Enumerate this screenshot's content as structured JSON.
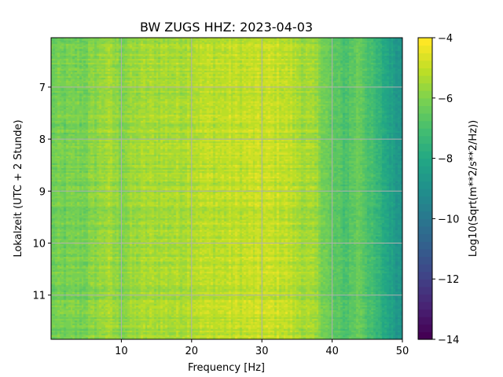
{
  "chart_data": {
    "type": "heatmap",
    "title": "BW ZUGS  HHZ: 2023-04-03",
    "xlabel": "Frequency [Hz]",
    "ylabel": "Lokalzeit (UTC + 2 Stunde)",
    "xlim": [
      0,
      50
    ],
    "ylim": [
      11.85,
      6.05
    ],
    "y_inverted": true,
    "x_ticks": [
      10,
      20,
      30,
      40,
      50
    ],
    "x_tick_labels": [
      "10",
      "20",
      "30",
      "40",
      "50"
    ],
    "y_ticks": [
      7,
      8,
      9,
      10,
      11
    ],
    "y_tick_labels": [
      "7",
      "8",
      "9",
      "10",
      "11"
    ],
    "grid": true,
    "colormap": "viridis",
    "colorbar": {
      "label": "Log10(Sqrt(m**2/s**2/Hz))",
      "range": [
        -14,
        -4
      ],
      "ticks": [
        -14,
        -12,
        -10,
        -8,
        -6,
        -4
      ],
      "tick_labels": [
        "−14",
        "−12",
        "−10",
        "−8",
        "−6",
        "−4"
      ],
      "levels": 40
    },
    "spectrum_profile": {
      "frequency_hz": [
        0,
        5,
        8,
        10,
        12,
        15,
        18,
        20,
        25,
        30,
        33,
        35,
        38,
        40,
        42,
        44,
        46,
        48,
        50
      ],
      "log_amplitude": [
        -6.3,
        -6.1,
        -5.5,
        -5.9,
        -5.6,
        -5.4,
        -5.4,
        -5.2,
        -5.1,
        -5.0,
        -5.0,
        -5.3,
        -5.7,
        -6.6,
        -6.9,
        -6.3,
        -7.3,
        -8.1,
        -8.9
      ]
    }
  }
}
